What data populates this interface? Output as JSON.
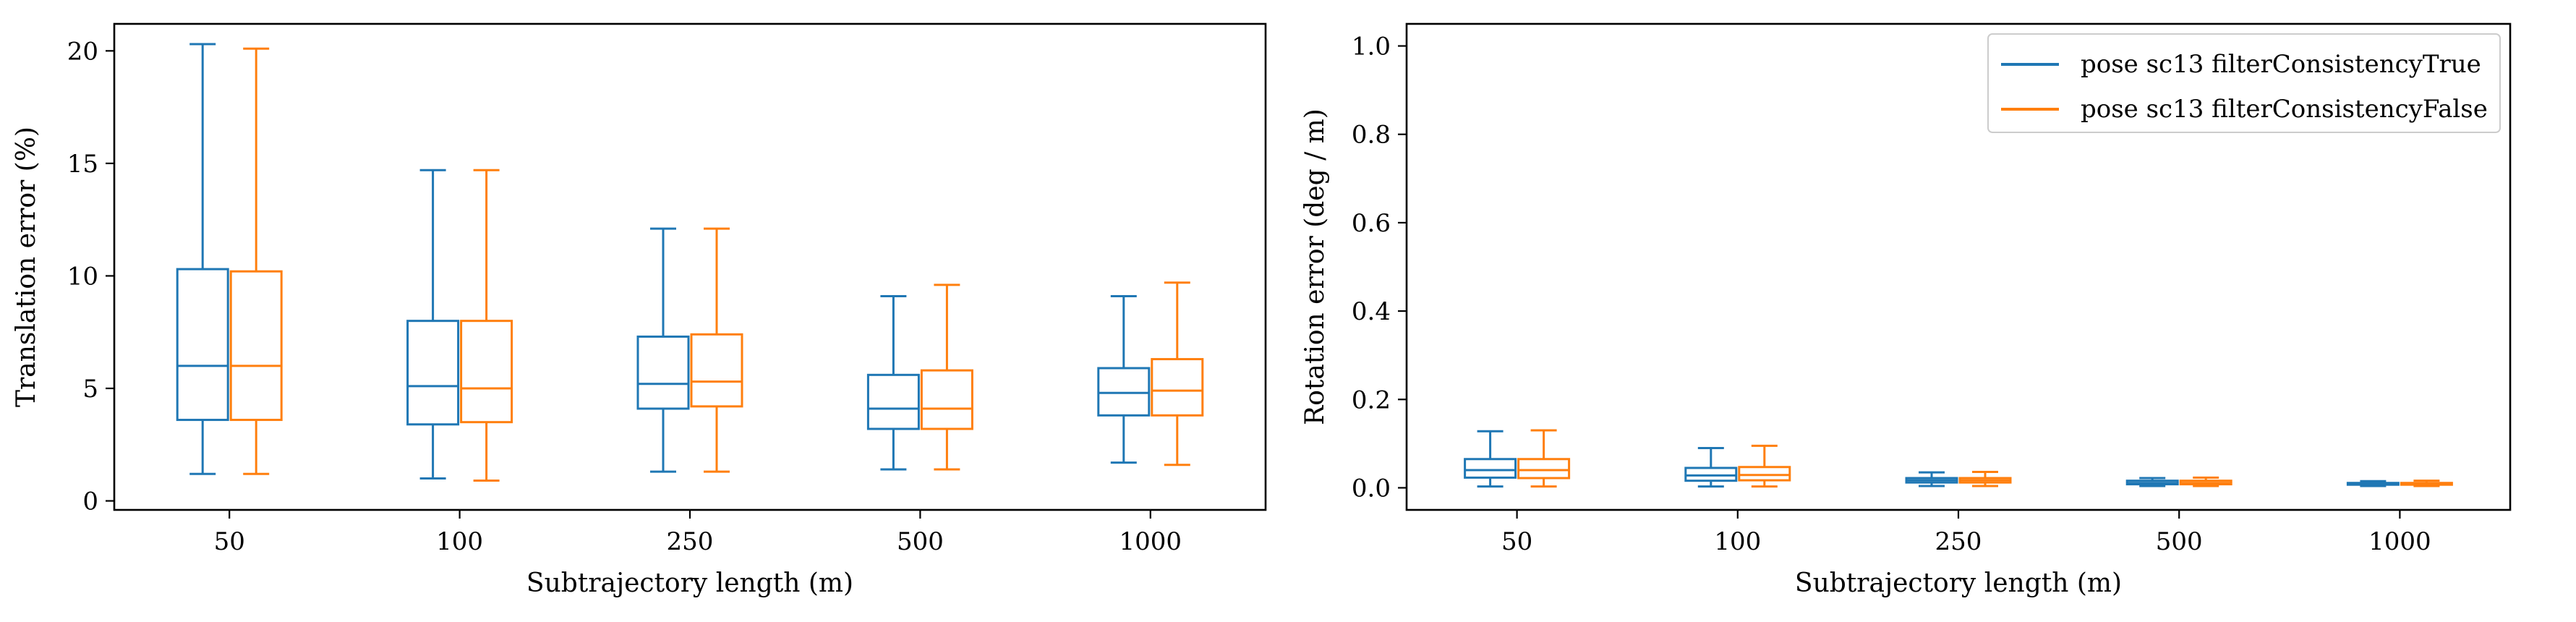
{
  "colors": {
    "series_true": "#1f77b4",
    "series_false": "#ff7f0e",
    "axes": "#000000",
    "background": "#ffffff"
  },
  "chart_data": [
    {
      "type": "box",
      "title": "",
      "xlabel": "Subtrajectory length (m)",
      "ylabel": "Translation error (%)",
      "categories": [
        "50",
        "100",
        "250",
        "500",
        "1000"
      ],
      "ylim": [
        -0.4,
        21.2
      ],
      "yticks": [
        0,
        5,
        10,
        15,
        20
      ],
      "grid": false,
      "legend": "none",
      "series": [
        {
          "name": "pose sc13 filterConsistencyTrue",
          "color": "#1f77b4",
          "boxes": [
            {
              "whislo": 1.2,
              "q1": 3.6,
              "med": 6.0,
              "q3": 10.3,
              "whishi": 20.3
            },
            {
              "whislo": 1.0,
              "q1": 3.4,
              "med": 5.1,
              "q3": 8.0,
              "whishi": 14.7
            },
            {
              "whislo": 1.3,
              "q1": 4.1,
              "med": 5.2,
              "q3": 7.3,
              "whishi": 12.1
            },
            {
              "whislo": 1.4,
              "q1": 3.2,
              "med": 4.1,
              "q3": 5.6,
              "whishi": 9.1
            },
            {
              "whislo": 1.7,
              "q1": 3.8,
              "med": 4.8,
              "q3": 5.9,
              "whishi": 9.1
            }
          ]
        },
        {
          "name": "pose sc13 filterConsistencyFalse",
          "color": "#ff7f0e",
          "boxes": [
            {
              "whislo": 1.2,
              "q1": 3.6,
              "med": 6.0,
              "q3": 10.2,
              "whishi": 20.1
            },
            {
              "whislo": 0.9,
              "q1": 3.5,
              "med": 5.0,
              "q3": 8.0,
              "whishi": 14.7
            },
            {
              "whislo": 1.3,
              "q1": 4.2,
              "med": 5.3,
              "q3": 7.4,
              "whishi": 12.1
            },
            {
              "whislo": 1.4,
              "q1": 3.2,
              "med": 4.1,
              "q3": 5.8,
              "whishi": 9.6
            },
            {
              "whislo": 1.6,
              "q1": 3.8,
              "med": 4.9,
              "q3": 6.3,
              "whishi": 9.7
            }
          ]
        }
      ]
    },
    {
      "type": "box",
      "title": "",
      "xlabel": "Subtrajectory length (m)",
      "ylabel": "Rotation error (deg / m)",
      "categories": [
        "50",
        "100",
        "250",
        "500",
        "1000"
      ],
      "ylim": [
        -0.05,
        1.05
      ],
      "yticks": [
        0.0,
        0.2,
        0.4,
        0.6,
        0.8,
        1.0
      ],
      "grid": false,
      "legend": "upper right",
      "series": [
        {
          "name": "pose sc13 filterConsistencyTrue",
          "color": "#1f77b4",
          "boxes": [
            {
              "whislo": 0.003,
              "q1": 0.023,
              "med": 0.04,
              "q3": 0.065,
              "whishi": 0.128
            },
            {
              "whislo": 0.003,
              "q1": 0.016,
              "med": 0.028,
              "q3": 0.045,
              "whishi": 0.09
            },
            {
              "whislo": 0.004,
              "q1": 0.012,
              "med": 0.017,
              "q3": 0.022,
              "whishi": 0.035
            },
            {
              "whislo": 0.004,
              "q1": 0.008,
              "med": 0.011,
              "q3": 0.016,
              "whishi": 0.022
            },
            {
              "whislo": 0.004,
              "q1": 0.007,
              "med": 0.009,
              "q3": 0.011,
              "whishi": 0.015
            }
          ]
        },
        {
          "name": "pose sc13 filterConsistencyFalse",
          "color": "#ff7f0e",
          "boxes": [
            {
              "whislo": 0.003,
              "q1": 0.022,
              "med": 0.04,
              "q3": 0.065,
              "whishi": 0.13
            },
            {
              "whislo": 0.003,
              "q1": 0.017,
              "med": 0.029,
              "q3": 0.047,
              "whishi": 0.095
            },
            {
              "whislo": 0.004,
              "q1": 0.012,
              "med": 0.017,
              "q3": 0.022,
              "whishi": 0.036
            },
            {
              "whislo": 0.004,
              "q1": 0.008,
              "med": 0.011,
              "q3": 0.016,
              "whishi": 0.023
            },
            {
              "whislo": 0.004,
              "q1": 0.007,
              "med": 0.009,
              "q3": 0.011,
              "whishi": 0.016
            }
          ]
        }
      ]
    }
  ]
}
